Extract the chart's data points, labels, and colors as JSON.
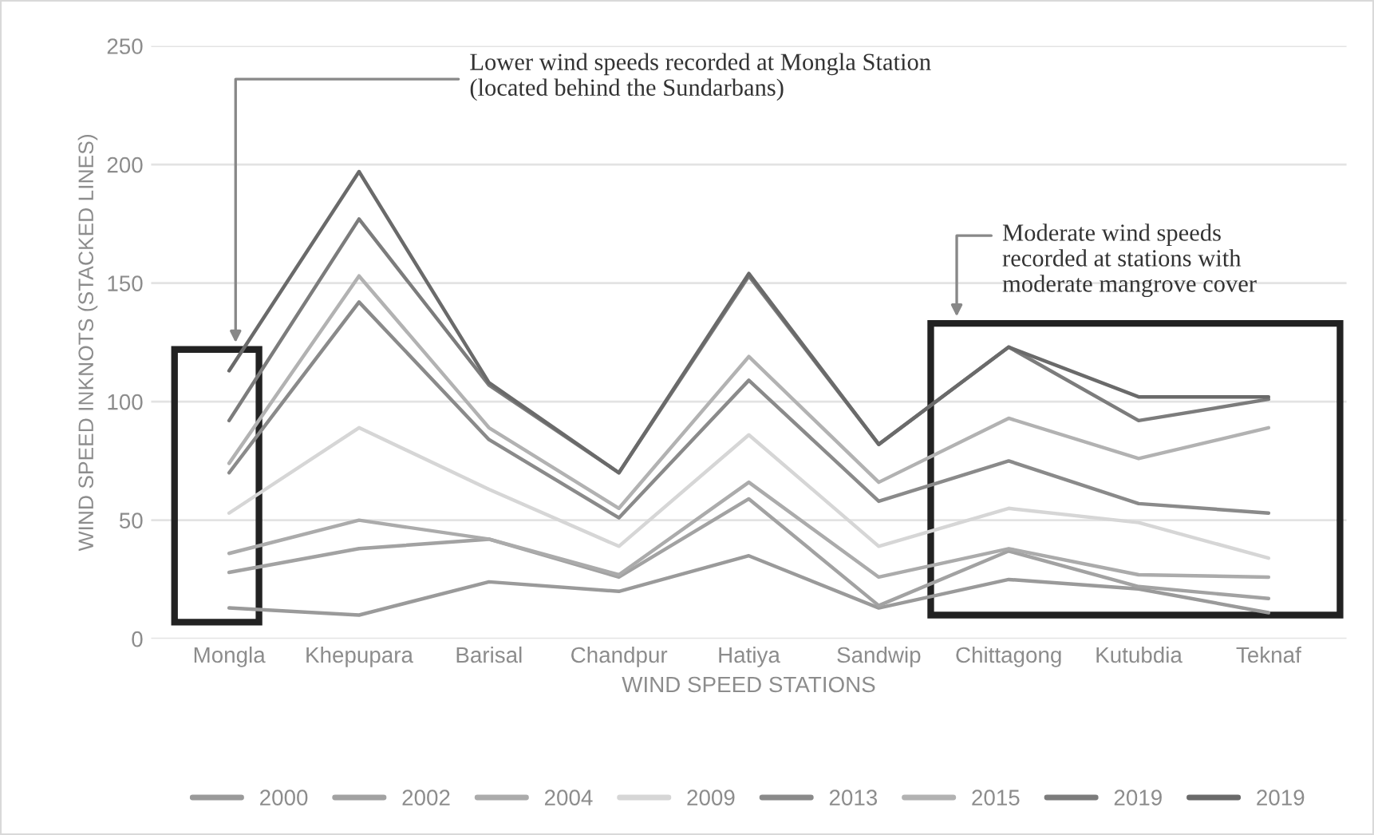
{
  "chart_data": {
    "type": "line",
    "xlabel": "WIND SPEED STATIONS",
    "ylabel": "WIND SPEED INKNOTS (STACKED LINES)",
    "categories": [
      "Mongla",
      "Khepupara",
      "Barisal",
      "Chandpur",
      "Hatiya",
      "Sandwip",
      "Chittagong",
      "Kutubdia",
      "Teknaf"
    ],
    "series": [
      {
        "name": "2000",
        "color": "#9a9a9a",
        "values": [
          13,
          10,
          24,
          20,
          35,
          13,
          25,
          21,
          11
        ]
      },
      {
        "name": "2002",
        "color": "#a2a2a2",
        "values": [
          28,
          38,
          42,
          26,
          59,
          14,
          37,
          22,
          17
        ]
      },
      {
        "name": "2004",
        "color": "#ababab",
        "values": [
          36,
          50,
          42,
          27,
          66,
          26,
          38,
          27,
          26
        ]
      },
      {
        "name": "2009",
        "color": "#d6d6d6",
        "values": [
          53,
          89,
          63,
          39,
          86,
          39,
          55,
          49,
          34
        ]
      },
      {
        "name": "2013",
        "color": "#8a8a8a",
        "values": [
          70,
          142,
          84,
          51,
          109,
          58,
          75,
          57,
          53
        ]
      },
      {
        "name": "2015",
        "color": "#b2b2b2",
        "values": [
          74,
          153,
          89,
          55,
          119,
          66,
          93,
          76,
          89
        ]
      },
      {
        "name": "2019",
        "color": "#7c7c7c",
        "values": [
          92,
          177,
          107,
          70,
          153,
          82,
          123,
          92,
          101
        ]
      },
      {
        "name": "2019",
        "color": "#6a6a6a",
        "values": [
          113,
          197,
          108,
          70,
          154,
          82,
          123,
          102,
          102
        ]
      }
    ],
    "ylim": [
      0,
      250
    ],
    "yticks": [
      0,
      50,
      100,
      150,
      200,
      250
    ],
    "grid": "y",
    "legend": "bottom",
    "marker": "none",
    "line_style": "solid",
    "annotations": [
      "Lower wind speeds recorded at Mongla Station\n(located behind the Sundarbans)",
      "Moderate wind speeds\nrecorded at stations with\nmoderate mangrove cover"
    ]
  }
}
